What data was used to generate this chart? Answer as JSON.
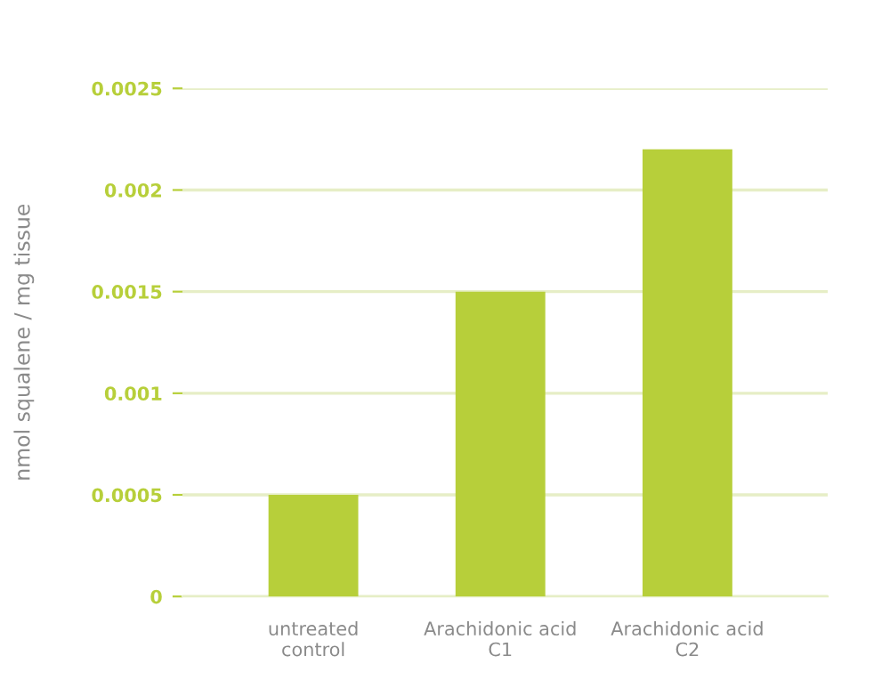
{
  "chart_data": {
    "type": "bar",
    "ylabel": "nmol squalene / mg tissue",
    "categories": [
      "untreated\ncontrol",
      "Arachidonic acid\nC1",
      "Arachidonic acid\nC2"
    ],
    "values": [
      0.0005,
      0.0015,
      0.0022
    ],
    "color": "#b7cf3a",
    "ylim": [
      0,
      0.0025
    ],
    "yticks": [
      0,
      0.0005,
      0.001,
      0.0015,
      0.002,
      0.0025
    ],
    "grid": "y"
  }
}
